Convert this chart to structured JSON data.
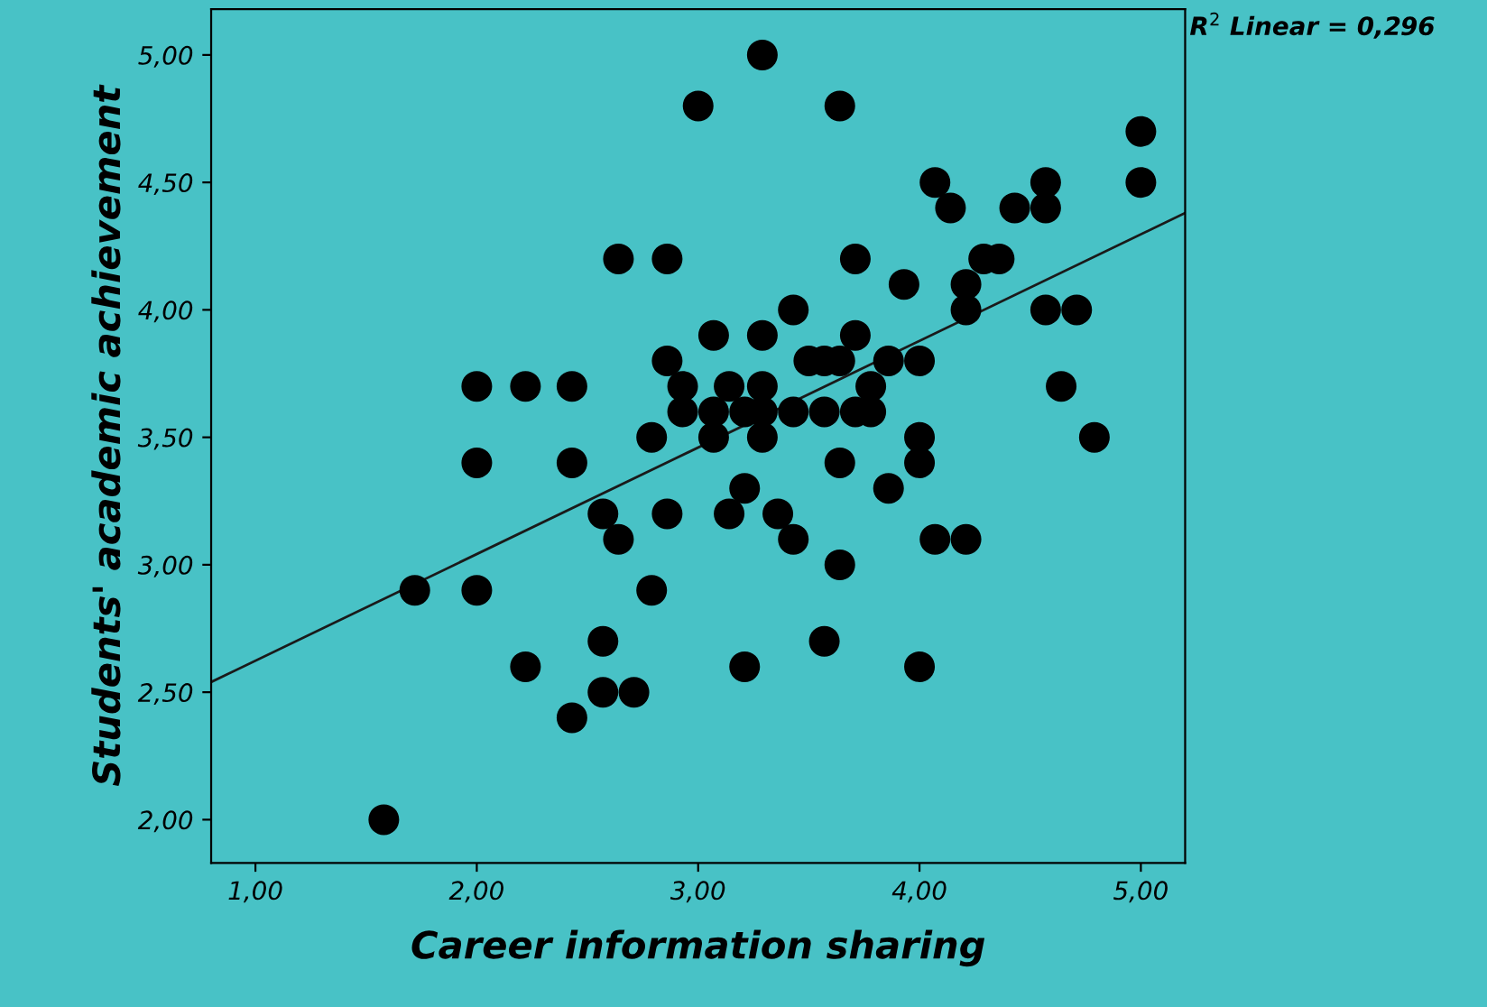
{
  "chart_data": {
    "type": "scatter",
    "xlabel": "Career information sharing",
    "ylabel": "Students' academic achievement",
    "annotations": [
      "R$^{2}$ Linear = 0,296"
    ],
    "xlim": [
      0.8,
      5.2
    ],
    "ylim": [
      1.83,
      5.18
    ],
    "xticks": [
      {
        "value": 1,
        "label": "1,00"
      },
      {
        "value": 2,
        "label": "2,00"
      },
      {
        "value": 3,
        "label": "3,00"
      },
      {
        "value": 4,
        "label": "4,00"
      },
      {
        "value": 5,
        "label": "5,00"
      }
    ],
    "yticks": [
      {
        "value": 2,
        "label": "2,00"
      },
      {
        "value": 2.5,
        "label": "2,50"
      },
      {
        "value": 3,
        "label": "3,00"
      },
      {
        "value": 3.5,
        "label": "3,50"
      },
      {
        "value": 4,
        "label": "4,00"
      },
      {
        "value": 4.5,
        "label": "4,50"
      },
      {
        "value": 5,
        "label": "5,00"
      }
    ],
    "grid": false,
    "legend": false,
    "marker": "circle",
    "series": [
      {
        "color": "#000000",
        "x": [
          1.58,
          1.72,
          2.0,
          2.0,
          2.0,
          2.22,
          2.22,
          2.43,
          2.43,
          2.43,
          2.57,
          2.57,
          2.57,
          2.64,
          2.64,
          2.71,
          2.79,
          2.79,
          2.86,
          2.86,
          2.86,
          2.93,
          2.93,
          3.0,
          3.07,
          3.07,
          3.07,
          3.14,
          3.14,
          3.21,
          3.21,
          3.21,
          3.29,
          3.29,
          3.29,
          3.29,
          3.29,
          3.36,
          3.43,
          3.43,
          3.43,
          3.5,
          3.57,
          3.57,
          3.57,
          3.64,
          3.64,
          3.64,
          3.64,
          3.71,
          3.71,
          3.71,
          3.78,
          3.78,
          3.86,
          3.86,
          3.93,
          4.0,
          4.0,
          4.0,
          4.0,
          4.07,
          4.07,
          4.14,
          4.21,
          4.21,
          4.21,
          4.29,
          4.36,
          4.43,
          4.57,
          4.57,
          4.57,
          4.64,
          4.71,
          4.79,
          5.0,
          5.0
        ],
        "values": [
          2.0,
          2.9,
          3.7,
          3.4,
          2.9,
          3.7,
          2.6,
          3.7,
          3.4,
          2.4,
          3.2,
          2.7,
          2.5,
          3.1,
          4.2,
          2.5,
          3.5,
          2.9,
          4.2,
          3.8,
          3.2,
          3.7,
          3.6,
          4.8,
          3.9,
          3.5,
          3.6,
          3.7,
          3.2,
          3.6,
          3.3,
          2.6,
          5.0,
          3.9,
          3.7,
          3.6,
          3.5,
          3.2,
          4.0,
          3.6,
          3.1,
          3.8,
          3.8,
          3.6,
          2.7,
          4.8,
          3.8,
          3.4,
          3.0,
          4.2,
          3.9,
          3.6,
          3.7,
          3.6,
          3.8,
          3.3,
          4.1,
          3.8,
          3.5,
          3.4,
          2.6,
          4.5,
          3.1,
          4.4,
          4.1,
          4.0,
          3.1,
          4.2,
          4.2,
          4.4,
          4.5,
          4.4,
          4.0,
          3.7,
          4.0,
          3.5,
          4.7,
          4.5
        ]
      },
      {
        "type": "line",
        "color": "#1a1a1a",
        "marker": "none",
        "line_style": "solid",
        "x": [
          0.8,
          5.2
        ],
        "values": [
          2.54,
          4.38
        ]
      }
    ]
  }
}
